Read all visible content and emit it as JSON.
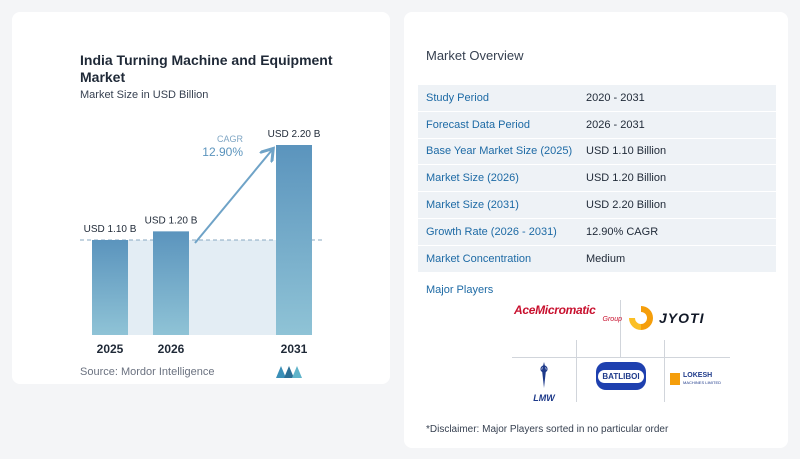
{
  "chart_data": {
    "type": "bar",
    "title": "India Turning Machine and Equipment Market",
    "subtitle": "Market Size in USD Billion",
    "categories": [
      "2025",
      "2026",
      "2031"
    ],
    "values": [
      1.1,
      1.2,
      2.2
    ],
    "data_labels": [
      "USD 1.10 B",
      "USD 1.20 B",
      "USD 2.20 B"
    ],
    "cagr_label": "CAGR",
    "cagr_value": "12.90%",
    "ylim": [
      0,
      2.2
    ],
    "bar_color": "#5b94bd",
    "reference_line": true
  },
  "source": "Source:  Mordor Intelligence",
  "market_overview": {
    "title": "Market Overview",
    "rows": [
      {
        "label": "Study Period",
        "value": "2020 - 2031"
      },
      {
        "label": "Forecast Data Period",
        "value": "2026 - 2031"
      },
      {
        "label": "Base Year Market Size (2025)",
        "value": "USD 1.10 Billion"
      },
      {
        "label": "Market Size (2026)",
        "value": "USD 1.20 Billion"
      },
      {
        "label": "Market Size (2031)",
        "value": "USD 2.20 Billion"
      },
      {
        "label": "Growth Rate (2026 - 2031)",
        "value": "12.90% CAGR"
      },
      {
        "label": "Market Concentration",
        "value": "Medium"
      }
    ]
  },
  "major_players": {
    "title": "Major Players",
    "logos": {
      "ace": "AceMicromatic",
      "ace_sub": "Group",
      "jyoti": "JYOTI",
      "lmw": "LMW",
      "batliboi": "BATLIBOI",
      "lokesh_1": "LOKESH",
      "lokesh_2": "MACHINES LIMITED"
    }
  },
  "disclaimer": "*Disclaimer: Major Players sorted in no particular order"
}
